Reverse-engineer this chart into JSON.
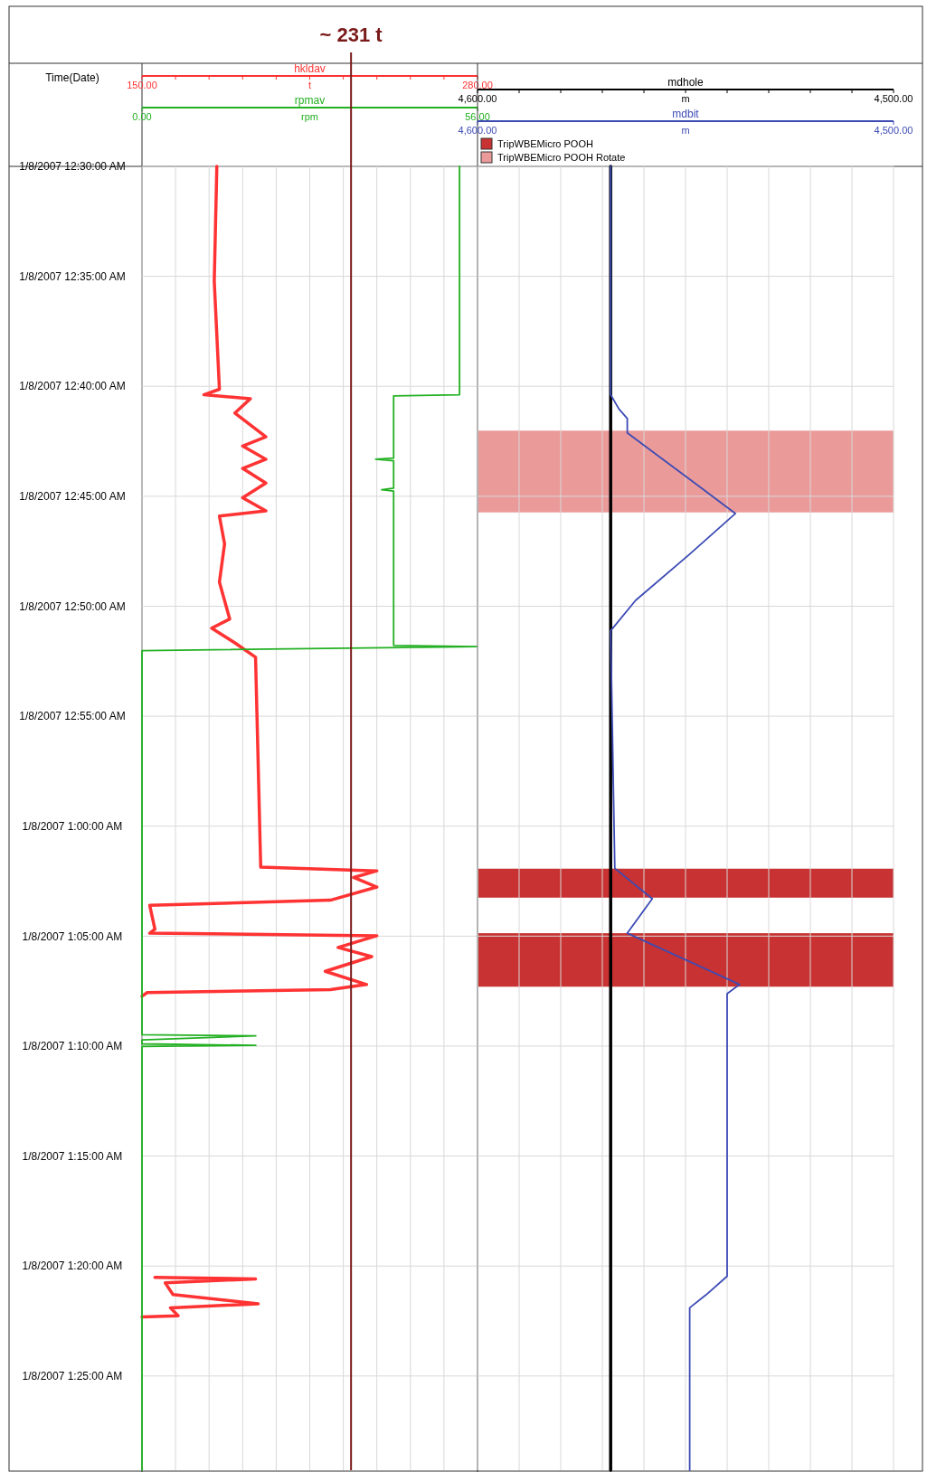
{
  "chart_data": [
    {
      "type": "line",
      "orientation": "horizontal",
      "ylabel": "Time(Date)",
      "xlabel": "t",
      "x2label": "rpm",
      "grid": true,
      "ylim": [
        "2007-01-08T01:29:17",
        "2007-01-08T00:30"
      ],
      "yticks": [
        {
          "value": "2007-01-08T00:30",
          "label": "1/8/2007 12:30:00 AM"
        },
        {
          "value": "2007-01-08T00:35",
          "label": "1/8/2007 12:35:00 AM"
        },
        {
          "value": "2007-01-08T00:40",
          "label": "1/8/2007 12:40:00 AM"
        },
        {
          "value": "2007-01-08T00:45",
          "label": "1/8/2007 12:45:00 AM"
        },
        {
          "value": "2007-01-08T00:50",
          "label": "1/8/2007 12:50:00 AM"
        },
        {
          "value": "2007-01-08T00:55",
          "label": "1/8/2007 12:55:00 AM"
        },
        {
          "value": "2007-01-08T01:00",
          "label": "1/8/2007 1:00:00 AM"
        },
        {
          "value": "2007-01-08T01:05",
          "label": "1/8/2007 1:05:00 AM"
        },
        {
          "value": "2007-01-08T01:10",
          "label": "1/8/2007 1:10:00 AM"
        },
        {
          "value": "2007-01-08T01:15",
          "label": "1/8/2007 1:15:00 AM"
        },
        {
          "value": "2007-01-08T01:20",
          "label": "1/8/2007 1:20:00 AM"
        },
        {
          "value": "2007-01-08T01:25",
          "label": "1/8/2007 1:25:00 AM"
        }
      ],
      "xlim": [
        150,
        280
      ],
      "xticks": [
        {
          "value": 150,
          "label": "150.00"
        },
        {
          "value": 163,
          "label": null
        },
        {
          "value": 176,
          "label": null
        },
        {
          "value": 189,
          "label": null
        },
        {
          "value": 202,
          "label": null
        },
        {
          "value": 215,
          "label": null
        },
        {
          "value": 228,
          "label": null
        },
        {
          "value": 241,
          "label": null
        },
        {
          "value": 254,
          "label": null
        },
        {
          "value": 267,
          "label": null
        },
        {
          "value": 280,
          "label": "280.00"
        }
      ],
      "x2lim": [
        0,
        56
      ],
      "x2ticks": [
        {
          "value": 0,
          "label": "0.00"
        },
        {
          "value": 56,
          "label": "56.00"
        }
      ],
      "ref_lines": [
        {
          "axis": "x",
          "value": 231,
          "label": "~ 231 t",
          "color": "#7a1a1a"
        }
      ],
      "series": [
        {
          "name": "hkldav",
          "color": "#ff3333",
          "x": [
            "2007-01-08T00:30:00",
            "2007-01-08T00:35:13",
            "2007-01-08T00:40:08",
            "2007-01-08T00:40:23",
            "2007-01-08T00:40:34",
            "2007-01-08T00:41:13",
            "2007-01-08T00:42:18",
            "2007-01-08T00:42:43",
            "2007-01-08T00:43:19",
            "2007-01-08T00:43:44",
            "2007-01-08T00:44:24",
            "2007-01-08T00:45:04",
            "2007-01-08T00:45:40",
            "2007-01-08T00:45:54",
            "2007-01-08T00:47:10",
            "2007-01-08T00:48:54",
            "2007-01-08T00:50:35",
            "2007-01-08T00:51:00",
            "2007-01-08T00:51:40",
            "2007-01-08T00:52:19",
            "2007-01-08T01:01:52",
            "2007-01-08T01:02:02",
            "2007-01-08T01:02:20",
            "2007-01-08T01:02:46",
            "2007-01-08T01:03:22",
            "2007-01-08T01:03:36",
            "2007-01-08T01:04:41",
            "2007-01-08T01:04:52",
            "2007-01-08T01:04:59",
            "2007-01-08T01:05:31",
            "2007-01-08T01:05:56",
            "2007-01-08T01:06:36",
            "2007-01-08T01:07:12",
            "2007-01-08T01:07:26",
            "2007-01-08T01:07:34",
            "2007-01-08T01:07:44",
            "2007-01-08T01:12:00",
            "2007-01-08T01:20:31",
            "2007-01-08T01:20:35",
            "2007-01-08T01:20:46",
            "2007-01-08T01:21:18",
            "2007-01-08T01:21:43",
            "2007-01-08T01:21:54",
            "2007-01-08T01:22:16",
            "2007-01-08T01:22:19"
          ],
          "values": [
            179,
            178,
            180,
            174,
            192,
            186,
            198,
            189,
            198,
            189,
            198,
            189,
            198,
            180,
            182,
            180,
            184,
            177,
            186,
            194,
            196,
            241,
            232,
            241,
            223,
            153,
            155,
            153,
            241,
            226,
            239,
            221,
            237,
            223,
            152,
            150,
            null,
            155,
            194,
            159,
            162,
            195,
            161,
            164,
            150
          ]
        },
        {
          "name": "rpmav",
          "color": "#22b022",
          "axis": "x2",
          "x": [
            "2007-01-08T00:30:00",
            "2007-01-08T00:40:23",
            "2007-01-08T00:40:26",
            "2007-01-08T00:43:16",
            "2007-01-08T00:43:19",
            "2007-01-08T00:43:23",
            "2007-01-08T00:44:38",
            "2007-01-08T00:44:42",
            "2007-01-08T00:44:46",
            "2007-01-08T00:51:47",
            "2007-01-08T00:51:50",
            "2007-01-08T00:52:01",
            "2007-01-08T01:09:29",
            "2007-01-08T01:09:32",
            "2007-01-08T01:09:43",
            "2007-01-08T01:09:54",
            "2007-01-08T01:09:58",
            "2007-01-08T01:10:01",
            "2007-01-08T01:29:17"
          ],
          "values": [
            53,
            53,
            42,
            42,
            39,
            42,
            42,
            40,
            42,
            42,
            56,
            0,
            0,
            19,
            0,
            0,
            19,
            0,
            0
          ]
        }
      ]
    },
    {
      "type": "line",
      "orientation": "horizontal",
      "xlabel": "m",
      "x2label": "m",
      "grid": true,
      "tick_labels": "x",
      "legend": "top",
      "ylim": [
        "2007-01-08T01:29:17",
        "2007-01-08T00:30"
      ],
      "yticks": [
        {
          "value": "2007-01-08T00:30",
          "label": null
        },
        {
          "value": "2007-01-08T00:35",
          "label": null
        },
        {
          "value": "2007-01-08T00:40",
          "label": null
        },
        {
          "value": "2007-01-08T00:45",
          "label": null
        },
        {
          "value": "2007-01-08T00:50",
          "label": null
        },
        {
          "value": "2007-01-08T00:55",
          "label": null
        },
        {
          "value": "2007-01-08T01:00",
          "label": null
        },
        {
          "value": "2007-01-08T01:05",
          "label": null
        },
        {
          "value": "2007-01-08T01:10",
          "label": null
        },
        {
          "value": "2007-01-08T01:15",
          "label": null
        },
        {
          "value": "2007-01-08T01:20",
          "label": null
        },
        {
          "value": "2007-01-08T01:25",
          "label": null
        }
      ],
      "xlim": [
        4600,
        4500
      ],
      "xticks": [
        {
          "value": 4600,
          "label": "4,600.00"
        },
        {
          "value": 4590,
          "label": null
        },
        {
          "value": 4580,
          "label": null
        },
        {
          "value": 4570,
          "label": null
        },
        {
          "value": 4560,
          "label": null
        },
        {
          "value": 4550,
          "label": null
        },
        {
          "value": 4540,
          "label": null
        },
        {
          "value": 4530,
          "label": null
        },
        {
          "value": 4520,
          "label": null
        },
        {
          "value": 4510,
          "label": null
        },
        {
          "value": 4500,
          "label": "4,500.00"
        }
      ],
      "x2lim": [
        4600,
        4500
      ],
      "x2ticks": [
        {
          "value": 4600,
          "label": "4,600.00"
        },
        {
          "value": 4500,
          "label": "4,500.00"
        }
      ],
      "bands": [
        {
          "axis": "y",
          "from": "2007-01-08T01:01:56",
          "to": "2007-01-08T01:03:15",
          "label": "TripWBEMicro POOH",
          "color": "#c83232"
        },
        {
          "axis": "y",
          "from": "2007-01-08T00:42:01",
          "to": "2007-01-08T00:45:44",
          "label": "TripWBEMicro POOH Rotate",
          "color": "#eb9a9a"
        },
        {
          "axis": "y",
          "from": "2007-01-08T01:04:52",
          "to": "2007-01-08T01:07:18",
          "color": "#c83232"
        }
      ],
      "series": [
        {
          "name": "mdhole",
          "color": "#000000",
          "x": [
            "2007-01-08T00:30:00",
            "2007-01-08T01:29:17"
          ],
          "values": [
            4568,
            4568
          ]
        },
        {
          "name": "mdbit",
          "color": "#3c4bb4",
          "axis": "x2",
          "x": [
            "2007-01-08T00:30:00",
            "2007-01-08T00:40:23",
            "2007-01-08T00:41:02",
            "2007-01-08T00:41:28",
            "2007-01-08T00:42:07",
            "2007-01-08T00:45:47",
            "2007-01-08T00:47:38",
            "2007-01-08T00:49:44",
            "2007-01-08T00:51:07",
            "2007-01-08T01:01:55",
            "2007-01-08T01:03:18",
            "2007-01-08T01:04:52",
            "2007-01-08T01:07:12",
            "2007-01-08T01:07:37",
            "2007-01-08T01:20:28",
            "2007-01-08T01:21:18",
            "2007-01-08T01:21:54",
            "2007-01-08T01:29:17"
          ],
          "values": [
            4568,
            4568,
            4566,
            4564,
            4564,
            4538,
            4549,
            4562,
            4568,
            4567,
            4558,
            4564,
            4537,
            4540,
            4540,
            4545,
            4549,
            4549
          ]
        }
      ]
    }
  ]
}
